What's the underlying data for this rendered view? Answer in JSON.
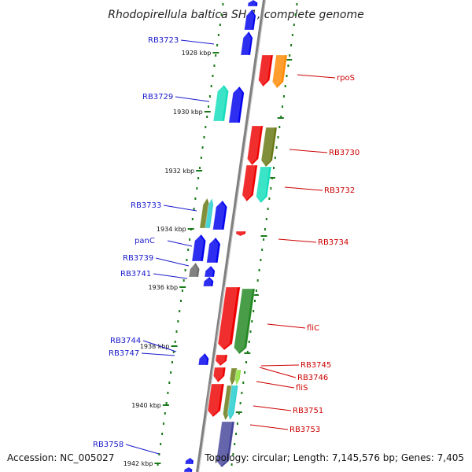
{
  "title": "Rhodopirellula baltica SH 1, complete genome",
  "footer": {
    "accession": "Accession: NC_005027",
    "topology": "Topology: circular; Length: 7,145,576 bp; Genes: 7,405"
  },
  "colors": {
    "reverse_label": "#1a1acc",
    "forward_label": "#cc0000",
    "backbone": "#808080",
    "tick": "#1a7a1a"
  },
  "ruler": [
    {
      "label": "1928 kbp"
    },
    {
      "label": "1930 kbp"
    },
    {
      "label": "1932 kbp"
    },
    {
      "label": "1934 kbp"
    },
    {
      "label": "1936 kbp"
    },
    {
      "label": "1938 kbp"
    },
    {
      "label": "1940 kbp"
    },
    {
      "label": "1942 kbp"
    }
  ],
  "labels_reverse": [
    "RB3723",
    "RB3729",
    "RB3733",
    "panC",
    "RB3739",
    "RB3741",
    "RB3744",
    "RB3747",
    "RB3758"
  ],
  "labels_forward": [
    "rpoS",
    "RB3730",
    "RB3732",
    "RB3734",
    "fliC",
    "RB3745",
    "RB3746",
    "fliS",
    "RB3751",
    "RB3753"
  ],
  "gene_colors": {
    "blue": "#0000ee",
    "red": "#ee0000",
    "orange": "#ff8800",
    "green": "#228822",
    "olive": "#667711",
    "aqua": "#11ddbb",
    "cyan": "#22cccc",
    "gray": "#666666",
    "slate": "#444499",
    "lime": "#88dd33"
  }
}
